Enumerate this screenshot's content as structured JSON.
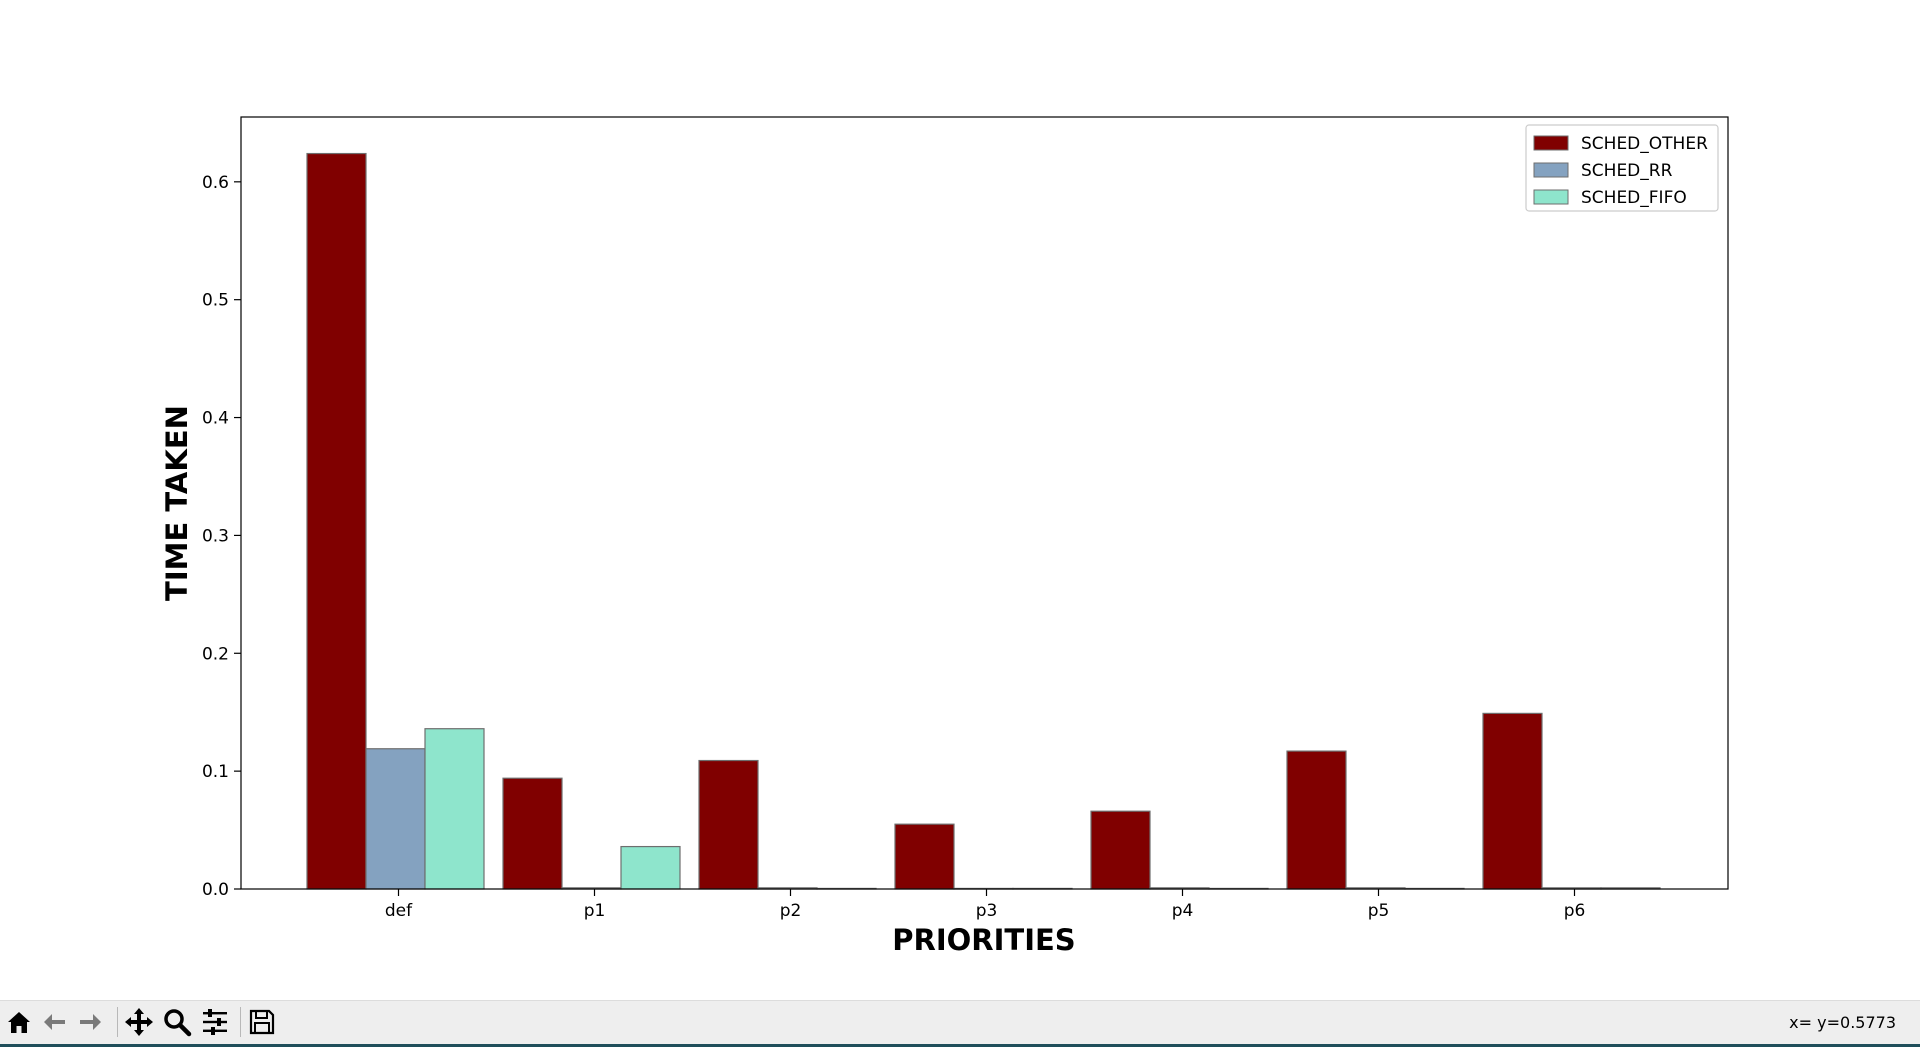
{
  "chart_data": {
    "type": "bar",
    "xlabel": "PRIORITIES",
    "ylabel": "TIME TAKEN",
    "categories": [
      "def",
      "p1",
      "p2",
      "p3",
      "p4",
      "p5",
      "p6"
    ],
    "ylim": [
      0,
      0.655
    ],
    "yticks": [
      "0.0",
      "0.1",
      "0.2",
      "0.3",
      "0.4",
      "0.5",
      "0.6"
    ],
    "series": [
      {
        "name": "SCHED_OTHER",
        "color": "#800000",
        "values": [
          0.624,
          0.094,
          0.109,
          0.055,
          0.066,
          0.117,
          0.149
        ]
      },
      {
        "name": "SCHED_RR",
        "color": "#84a2c0",
        "values": [
          0.119,
          0.001,
          0.001,
          0.0005,
          0.001,
          0.001,
          0.001
        ]
      },
      {
        "name": "SCHED_FIFO",
        "color": "#8ee5cc",
        "values": [
          0.136,
          0.036,
          0.0005,
          0.0005,
          0.0005,
          0.0005,
          0.001
        ]
      }
    ],
    "legend_position": "top-right",
    "grid": false
  },
  "toolbar": {
    "buttons": [
      {
        "name": "home-button",
        "icon": "home-icon"
      },
      {
        "name": "back-button",
        "icon": "arrow-left-icon"
      },
      {
        "name": "forward-button",
        "icon": "arrow-right-icon"
      },
      {
        "name": "pan-button",
        "icon": "move-icon"
      },
      {
        "name": "zoom-button",
        "icon": "magnifier-icon"
      },
      {
        "name": "configure-subplots-button",
        "icon": "sliders-icon"
      },
      {
        "name": "save-button",
        "icon": "floppy-disk-icon"
      }
    ],
    "coordinates": "x= y=0.5773"
  }
}
